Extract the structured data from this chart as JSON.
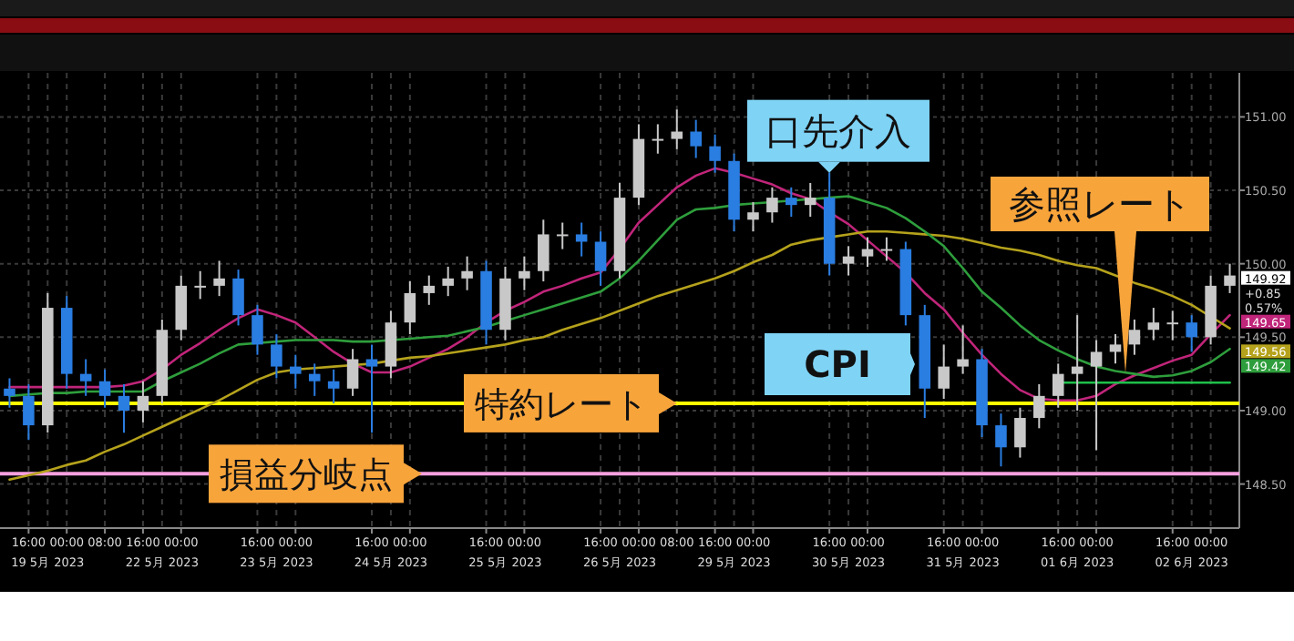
{
  "chart_data": {
    "type": "candlestick",
    "categories": [
      null,
      "16:00",
      "19 5月 2023",
      "00:00",
      null,
      "08:00",
      null,
      "16:00",
      "22 5月 2023",
      "00:00",
      null,
      null,
      null,
      "16:00",
      "23 5月 2023",
      "00:00",
      null,
      null,
      null,
      "16:00",
      "24 5月 2023",
      "00:00",
      null,
      null,
      null,
      "16:00",
      "25 5月 2023",
      "00:00",
      null,
      null,
      null,
      "16:00",
      "26 5月 2023",
      "00:00",
      null,
      "08:00",
      null,
      "16:00",
      "29 5月 2023",
      "00:00",
      null,
      null,
      null,
      "16:00",
      "30 5月 2023",
      "00:00",
      null,
      null,
      null,
      "16:00",
      "31 5月 2023",
      "00:00",
      null,
      null,
      null,
      "16:00",
      "01 6月 2023",
      "00:00",
      null,
      null,
      null,
      "16:00",
      "02 6月 2023",
      "00:00",
      null
    ],
    "ylim": [
      148.2,
      151.3
    ],
    "yticks": [
      {
        "value": 148.5,
        "label": "148.50"
      },
      {
        "value": 149,
        "label": "149.00"
      },
      {
        "value": 149.5,
        "label": "149.50"
      },
      {
        "value": 150,
        "label": "150.00"
      },
      {
        "value": 150.5,
        "label": "150.50"
      },
      {
        "value": 151,
        "label": "151.00"
      }
    ],
    "grid": true,
    "ohlc": [
      [
        149.15,
        149.22,
        149.02,
        149.1
      ],
      [
        149.1,
        149.18,
        148.8,
        148.9
      ],
      [
        148.9,
        149.8,
        148.85,
        149.7
      ],
      [
        149.7,
        149.78,
        149.15,
        149.25
      ],
      [
        149.25,
        149.35,
        149.1,
        149.2
      ],
      [
        149.2,
        149.28,
        149.02,
        149.1
      ],
      [
        149.1,
        149.18,
        148.85,
        149.0
      ],
      [
        149.0,
        149.2,
        148.92,
        149.1
      ],
      [
        149.1,
        149.62,
        149.05,
        149.55
      ],
      [
        149.55,
        149.92,
        149.48,
        149.85
      ],
      [
        149.85,
        149.95,
        149.76,
        149.85
      ],
      [
        149.85,
        150.02,
        149.78,
        149.9
      ],
      [
        149.9,
        149.96,
        149.58,
        149.65
      ],
      [
        149.65,
        149.72,
        149.38,
        149.45
      ],
      [
        149.45,
        149.52,
        149.22,
        149.3
      ],
      [
        149.3,
        149.38,
        149.15,
        149.25
      ],
      [
        149.25,
        149.32,
        149.1,
        149.2
      ],
      [
        149.2,
        149.28,
        149.05,
        149.15
      ],
      [
        149.15,
        149.42,
        149.1,
        149.35
      ],
      [
        149.35,
        149.45,
        148.85,
        149.3
      ],
      [
        149.3,
        149.68,
        149.22,
        149.6
      ],
      [
        149.6,
        149.88,
        149.52,
        149.8
      ],
      [
        149.8,
        149.92,
        149.72,
        149.85
      ],
      [
        149.85,
        149.98,
        149.78,
        149.9
      ],
      [
        149.9,
        150.05,
        149.82,
        149.95
      ],
      [
        149.95,
        150.02,
        149.45,
        149.55
      ],
      [
        149.55,
        149.98,
        149.48,
        149.9
      ],
      [
        149.9,
        150.05,
        149.82,
        149.95
      ],
      [
        149.95,
        150.3,
        149.88,
        150.2
      ],
      [
        150.2,
        150.28,
        150.1,
        150.2
      ],
      [
        150.2,
        150.28,
        150.05,
        150.15
      ],
      [
        150.15,
        150.22,
        149.85,
        149.95
      ],
      [
        149.95,
        150.55,
        149.9,
        150.45
      ],
      [
        150.45,
        150.95,
        150.4,
        150.85
      ],
      [
        150.85,
        150.95,
        150.75,
        150.85
      ],
      [
        150.85,
        151.05,
        150.78,
        150.9
      ],
      [
        150.9,
        150.98,
        150.72,
        150.8
      ],
      [
        150.8,
        150.88,
        150.62,
        150.7
      ],
      [
        150.7,
        150.75,
        150.22,
        150.3
      ],
      [
        150.3,
        150.42,
        150.22,
        150.35
      ],
      [
        150.35,
        150.52,
        150.28,
        150.45
      ],
      [
        150.45,
        150.52,
        150.32,
        150.4
      ],
      [
        150.4,
        150.55,
        150.32,
        150.45
      ],
      [
        150.45,
        150.62,
        149.92,
        150.0
      ],
      [
        150.0,
        150.12,
        149.92,
        150.05
      ],
      [
        150.05,
        150.18,
        149.98,
        150.1
      ],
      [
        150.1,
        150.18,
        150.02,
        150.1
      ],
      [
        150.1,
        150.15,
        149.58,
        149.65
      ],
      [
        149.65,
        149.72,
        148.95,
        149.15
      ],
      [
        149.15,
        149.45,
        149.08,
        149.3
      ],
      [
        149.3,
        149.58,
        149.25,
        149.35
      ],
      [
        149.35,
        149.42,
        148.82,
        148.9
      ],
      [
        148.9,
        148.98,
        148.62,
        148.75
      ],
      [
        148.75,
        149.02,
        148.68,
        148.95
      ],
      [
        148.95,
        149.18,
        148.88,
        149.1
      ],
      [
        149.1,
        149.32,
        149.02,
        149.25
      ],
      [
        149.25,
        149.65,
        149.0,
        149.3
      ],
      [
        149.3,
        149.48,
        148.73,
        149.4
      ],
      [
        149.4,
        149.52,
        149.32,
        149.45
      ],
      [
        149.45,
        149.62,
        149.38,
        149.55
      ],
      [
        149.55,
        149.7,
        149.48,
        149.6
      ],
      [
        149.6,
        149.68,
        149.48,
        149.6
      ],
      [
        149.6,
        149.65,
        149.4,
        149.5
      ],
      [
        149.5,
        149.92,
        149.45,
        149.85
      ],
      [
        149.85,
        150.0,
        149.8,
        149.92
      ]
    ],
    "colors": [
      "#2a7de1",
      "#2a7de1",
      "#c8c8c8",
      "#2a7de1",
      "#2a7de1",
      "#2a7de1",
      "#2a7de1",
      "#c8c8c8",
      "#c8c8c8",
      "#c8c8c8",
      "#c8c8c8",
      "#c8c8c8",
      "#2a7de1",
      "#2a7de1",
      "#2a7de1",
      "#2a7de1",
      "#2a7de1",
      "#2a7de1",
      "#c8c8c8",
      "#2a7de1",
      "#c8c8c8",
      "#c8c8c8",
      "#c8c8c8",
      "#c8c8c8",
      "#c8c8c8",
      "#2a7de1",
      "#c8c8c8",
      "#c8c8c8",
      "#c8c8c8",
      "#c8c8c8",
      "#2a7de1",
      "#2a7de1",
      "#c8c8c8",
      "#c8c8c8",
      "#c8c8c8",
      "#c8c8c8",
      "#2a7de1",
      "#2a7de1",
      "#2a7de1",
      "#c8c8c8",
      "#c8c8c8",
      "#2a7de1",
      "#c8c8c8",
      "#2a7de1",
      "#c8c8c8",
      "#c8c8c8",
      "#c8c8c8",
      "#2a7de1",
      "#2a7de1",
      "#c8c8c8",
      "#c8c8c8",
      "#2a7de1",
      "#2a7de1",
      "#c8c8c8",
      "#c8c8c8",
      "#c8c8c8",
      "#c8c8c8",
      "#c8c8c8",
      "#c8c8c8",
      "#c8c8c8",
      "#c8c8c8",
      "#c8c8c8",
      "#2a7de1",
      "#c8c8c8",
      "#c8c8c8"
    ],
    "series": [
      {
        "type": "line",
        "color": "#c0257a",
        "values": [
          149.16,
          149.16,
          149.16,
          149.16,
          149.16,
          149.16,
          149.17,
          149.2,
          149.28,
          149.38,
          149.46,
          149.55,
          149.63,
          149.69,
          149.65,
          149.6,
          149.5,
          149.4,
          149.32,
          149.26,
          149.26,
          149.3,
          149.36,
          149.42,
          149.5,
          149.6,
          149.68,
          149.74,
          149.81,
          149.85,
          149.9,
          149.94,
          150.1,
          150.28,
          150.4,
          150.52,
          150.6,
          150.65,
          150.62,
          150.58,
          150.54,
          150.48,
          150.44,
          150.35,
          150.27,
          150.16,
          150.05,
          149.94,
          149.8,
          149.69,
          149.53,
          149.38,
          149.25,
          149.14,
          149.08,
          149.07,
          149.07,
          149.1,
          149.18,
          149.24,
          149.29,
          149.34,
          149.38,
          149.52,
          149.65
        ],
        "value_labels": [
          null,
          null,
          null,
          null,
          null,
          null,
          null,
          null,
          null,
          null,
          null,
          null,
          null,
          null,
          null,
          null,
          null,
          null,
          null,
          null,
          null,
          null,
          null,
          null,
          null,
          null,
          null,
          null,
          null,
          null,
          null,
          null,
          null,
          null,
          null,
          null,
          null,
          null,
          null,
          null,
          null,
          null,
          null,
          null,
          null,
          null,
          null,
          null,
          null,
          null,
          null,
          null,
          null,
          null,
          null,
          null,
          null,
          null,
          null,
          null,
          null,
          null,
          null,
          null,
          "149.65"
        ]
      },
      {
        "type": "line",
        "color": "#b5a21c",
        "values": [
          148.53,
          148.56,
          148.59,
          148.63,
          148.66,
          148.72,
          148.77,
          148.83,
          148.89,
          148.95,
          149.01,
          149.07,
          149.14,
          149.21,
          149.26,
          149.28,
          149.29,
          149.3,
          149.31,
          149.32,
          149.34,
          149.36,
          149.37,
          149.39,
          149.41,
          149.43,
          149.45,
          149.48,
          149.5,
          149.55,
          149.59,
          149.63,
          149.68,
          149.73,
          149.78,
          149.82,
          149.86,
          149.9,
          149.95,
          150.01,
          150.06,
          150.13,
          150.16,
          150.18,
          150.2,
          150.22,
          150.22,
          150.21,
          150.2,
          150.19,
          150.17,
          150.14,
          150.11,
          150.09,
          150.06,
          150.02,
          149.99,
          149.97,
          149.92,
          149.87,
          149.83,
          149.78,
          149.72,
          149.64,
          149.56
        ],
        "value_labels": [
          null,
          null,
          null,
          null,
          null,
          null,
          null,
          null,
          null,
          null,
          null,
          null,
          null,
          null,
          null,
          null,
          null,
          null,
          null,
          null,
          null,
          null,
          null,
          null,
          null,
          null,
          null,
          null,
          null,
          null,
          null,
          null,
          null,
          null,
          null,
          null,
          null,
          null,
          null,
          null,
          null,
          null,
          null,
          null,
          null,
          null,
          null,
          null,
          null,
          null,
          null,
          null,
          null,
          null,
          null,
          null,
          null,
          null,
          null,
          null,
          null,
          null,
          null,
          null,
          "149.56"
        ]
      },
      {
        "type": "line",
        "color": "#2e9e3c",
        "values": [
          149.1,
          149.11,
          149.12,
          149.12,
          149.13,
          149.13,
          149.13,
          149.13,
          149.2,
          149.26,
          149.32,
          149.39,
          149.45,
          149.46,
          149.47,
          149.48,
          149.48,
          149.48,
          149.47,
          149.47,
          149.48,
          149.49,
          149.5,
          149.51,
          149.54,
          149.57,
          149.61,
          149.65,
          149.69,
          149.73,
          149.77,
          149.81,
          149.9,
          150.02,
          150.16,
          150.3,
          150.37,
          150.38,
          150.4,
          150.41,
          150.42,
          150.43,
          150.44,
          150.45,
          150.46,
          150.42,
          150.38,
          150.31,
          150.22,
          150.12,
          149.97,
          149.81,
          149.7,
          149.58,
          149.48,
          149.41,
          149.35,
          149.3,
          149.27,
          149.25,
          149.23,
          149.24,
          149.27,
          149.33,
          149.42
        ],
        "value_labels": [
          null,
          null,
          null,
          null,
          null,
          null,
          null,
          null,
          null,
          null,
          null,
          null,
          null,
          null,
          null,
          null,
          null,
          null,
          null,
          null,
          null,
          null,
          null,
          null,
          null,
          null,
          null,
          null,
          null,
          null,
          null,
          null,
          null,
          null,
          null,
          null,
          null,
          null,
          null,
          null,
          null,
          null,
          null,
          null,
          null,
          null,
          null,
          null,
          null,
          null,
          null,
          null,
          null,
          null,
          null,
          null,
          null,
          null,
          null,
          null,
          null,
          null,
          null,
          null,
          "149.42"
        ]
      },
      {
        "type": "line",
        "color": "#1fc04a",
        "values": [
          null,
          null,
          null,
          null,
          null,
          null,
          null,
          null,
          null,
          null,
          null,
          null,
          null,
          null,
          null,
          null,
          null,
          null,
          null,
          null,
          null,
          null,
          null,
          null,
          null,
          null,
          null,
          null,
          null,
          null,
          null,
          null,
          null,
          null,
          null,
          null,
          null,
          null,
          null,
          null,
          null,
          null,
          null,
          null,
          null,
          null,
          null,
          null,
          null,
          null,
          null,
          null,
          null,
          null,
          null,
          149.19,
          149.19,
          149.19,
          149.19,
          149.19,
          149.19,
          149.19,
          149.19,
          149.19,
          149.19
        ]
      }
    ],
    "ref_lines": [
      {
        "axis": "y",
        "value": 149.05,
        "label": "特約レート",
        "color": "#ffff00"
      },
      {
        "axis": "y",
        "value": 148.57,
        "label": "損益分岐点",
        "color": "#f7a0e0"
      }
    ],
    "annotations": [
      {
        "text": "口先介入",
        "y": 150.62
      },
      "CPI",
      "参照レート",
      "149.92",
      "+0.85",
      "0.57%"
    ]
  }
}
